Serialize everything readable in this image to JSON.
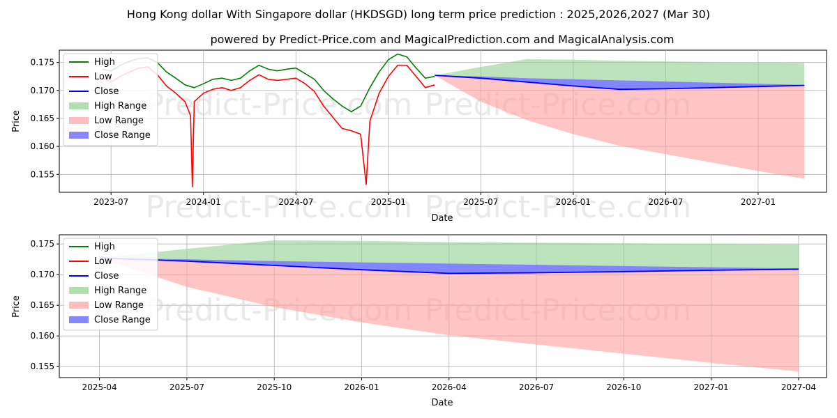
{
  "title": "Hong Kong dollar With Singapore dollar (HKDSGD) long term price prediction : 2025,2026,2027 (Mar 30)",
  "subtitle": "powered by Predict-Price.com and MagicalPrediction.com and MagicalAnalysis.com",
  "watermark": "Predict-Price.com",
  "colors": {
    "high": "#008000",
    "low": "#ff0000",
    "close": "#0000ff",
    "high_range": "#8fd18f",
    "low_range": "#ff9f9f",
    "close_range": "#7f7fff"
  },
  "chart_data": [
    {
      "type": "line",
      "panel": "top",
      "xlabel": "Date",
      "ylabel": "Price",
      "x_range_months": [
        2023.22,
        2027.37
      ],
      "ylim": [
        0.1518,
        0.1772
      ],
      "yticks": [
        0.155,
        0.16,
        0.165,
        0.17,
        0.175
      ],
      "ytick_labels": [
        "0.155",
        "0.160",
        "0.165",
        "0.170",
        "0.175"
      ],
      "xticks": [
        2023.5,
        2024.0,
        2024.5,
        2025.0,
        2025.5,
        2026.0,
        2026.5,
        2027.0
      ],
      "xtick_labels": [
        "2023-07",
        "2024-01",
        "2024-07",
        "2025-01",
        "2025-07",
        "2026-01",
        "2026-07",
        "2027-01"
      ],
      "legend": [
        "High",
        "Low",
        "Close",
        "High Range",
        "Low Range",
        "Close Range"
      ],
      "legend_placement": "top-left",
      "grid": true,
      "series": [
        {
          "name": "High",
          "x": [
            2023.45,
            2023.5,
            2023.55,
            2023.6,
            2023.65,
            2023.7,
            2023.75,
            2023.8,
            2023.85,
            2023.9,
            2023.95,
            2024.0,
            2024.05,
            2024.1,
            2024.15,
            2024.2,
            2024.25,
            2024.3,
            2024.35,
            2024.4,
            2024.45,
            2024.5,
            2024.55,
            2024.6,
            2024.65,
            2024.7,
            2024.75,
            2024.8,
            2024.85,
            2024.9,
            2024.95,
            2025.0,
            2025.05,
            2025.1,
            2025.15,
            2025.2,
            2025.25
          ],
          "values": [
            0.1738,
            0.1735,
            0.1745,
            0.1752,
            0.1757,
            0.1758,
            0.175,
            0.1733,
            0.1722,
            0.171,
            0.1705,
            0.1712,
            0.172,
            0.1722,
            0.1718,
            0.1722,
            0.1735,
            0.1745,
            0.1738,
            0.1735,
            0.1738,
            0.174,
            0.173,
            0.172,
            0.17,
            0.1685,
            0.1672,
            0.1662,
            0.1672,
            0.1705,
            0.1733,
            0.1755,
            0.1765,
            0.176,
            0.174,
            0.1722,
            0.1725
          ]
        },
        {
          "name": "Low",
          "x": [
            2023.45,
            2023.5,
            2023.55,
            2023.6,
            2023.65,
            2023.7,
            2023.75,
            2023.8,
            2023.85,
            2023.9,
            2023.93,
            2023.94,
            2023.95,
            2024.0,
            2024.05,
            2024.1,
            2024.15,
            2024.2,
            2024.25,
            2024.3,
            2024.35,
            2024.4,
            2024.45,
            2024.5,
            2024.55,
            2024.6,
            2024.65,
            2024.7,
            2024.75,
            2024.8,
            2024.85,
            2024.88,
            2024.9,
            2024.95,
            2025.0,
            2025.05,
            2025.1,
            2025.15,
            2025.2,
            2025.25
          ],
          "values": [
            0.1722,
            0.1715,
            0.1725,
            0.1733,
            0.174,
            0.1742,
            0.1728,
            0.1708,
            0.1695,
            0.168,
            0.1655,
            0.1528,
            0.168,
            0.1695,
            0.1702,
            0.1705,
            0.17,
            0.1705,
            0.1718,
            0.1728,
            0.172,
            0.1718,
            0.172,
            0.1722,
            0.1712,
            0.1698,
            0.1672,
            0.1652,
            0.1632,
            0.1628,
            0.1622,
            0.1532,
            0.1645,
            0.1695,
            0.1725,
            0.1745,
            0.1745,
            0.1725,
            0.1705,
            0.171
          ]
        },
        {
          "name": "Close",
          "x": [
            2025.25,
            2025.5,
            2025.75,
            2026.0,
            2026.25,
            2026.5,
            2026.75,
            2027.0,
            2027.25
          ],
          "values": [
            0.1727,
            0.1722,
            0.1715,
            0.1708,
            0.1702,
            0.1703,
            0.1705,
            0.1707,
            0.1709
          ]
        }
      ],
      "ranges": [
        {
          "name": "High Range",
          "x": [
            2025.25,
            2025.5,
            2025.75,
            2026.0,
            2026.25,
            2026.5,
            2026.75,
            2027.0,
            2027.25
          ],
          "upper": [
            0.1727,
            0.1742,
            0.1756,
            0.1755,
            0.1753,
            0.1752,
            0.1751,
            0.175,
            0.1749
          ],
          "lower": [
            0.1727,
            0.1722,
            0.1715,
            0.1708,
            0.1702,
            0.1703,
            0.1705,
            0.1707,
            0.1709
          ]
        },
        {
          "name": "Low Range",
          "x": [
            2025.25,
            2025.5,
            2025.75,
            2026.0,
            2026.25,
            2026.5,
            2026.75,
            2027.0,
            2027.25
          ],
          "upper": [
            0.1727,
            0.1722,
            0.1715,
            0.1708,
            0.1702,
            0.1703,
            0.1705,
            0.1707,
            0.1709
          ],
          "lower": [
            0.1727,
            0.168,
            0.1647,
            0.1622,
            0.1601,
            0.1586,
            0.1571,
            0.1556,
            0.1542
          ]
        },
        {
          "name": "Close Range",
          "x": [
            2025.25,
            2025.5,
            2025.75,
            2026.0,
            2026.25,
            2026.5,
            2026.75,
            2027.0,
            2027.25
          ],
          "upper": [
            0.1727,
            0.1725,
            0.1722,
            0.172,
            0.1718,
            0.1716,
            0.1714,
            0.1712,
            0.171
          ],
          "lower": [
            0.1727,
            0.1722,
            0.1715,
            0.1708,
            0.1702,
            0.1703,
            0.1705,
            0.1707,
            0.1709
          ]
        }
      ]
    },
    {
      "type": "line",
      "panel": "bottom",
      "xlabel": "Date",
      "ylabel": "Price",
      "x_range_months": [
        2025.135,
        2027.33
      ],
      "ylim": [
        0.1532,
        0.1765
      ],
      "yticks": [
        0.155,
        0.16,
        0.165,
        0.17,
        0.175
      ],
      "ytick_labels": [
        "0.155",
        "0.160",
        "0.165",
        "0.170",
        "0.175"
      ],
      "xticks": [
        2025.25,
        2025.5,
        2025.75,
        2026.0,
        2026.25,
        2026.5,
        2026.75,
        2027.0,
        2027.25
      ],
      "xtick_labels": [
        "2025-04",
        "2025-07",
        "2025-10",
        "2026-01",
        "2026-04",
        "2026-07",
        "2026-10",
        "2027-01",
        "2027-04"
      ],
      "legend": [
        "High",
        "Low",
        "Close",
        "High Range",
        "Low Range",
        "Close Range"
      ],
      "legend_placement": "top-left",
      "grid": true,
      "series": [
        {
          "name": "Close",
          "x": [
            2025.25,
            2025.5,
            2025.75,
            2026.0,
            2026.25,
            2026.5,
            2026.75,
            2027.0,
            2027.25
          ],
          "values": [
            0.1727,
            0.1722,
            0.1715,
            0.1708,
            0.1702,
            0.1703,
            0.1705,
            0.1707,
            0.1709
          ]
        }
      ],
      "ranges": [
        {
          "name": "High Range",
          "x": [
            2025.25,
            2025.5,
            2025.75,
            2026.0,
            2026.25,
            2026.5,
            2026.75,
            2027.0,
            2027.25
          ],
          "upper": [
            0.1727,
            0.1742,
            0.1756,
            0.1755,
            0.1753,
            0.1752,
            0.1751,
            0.175,
            0.1749
          ],
          "lower": [
            0.1727,
            0.1722,
            0.1715,
            0.1708,
            0.1702,
            0.1703,
            0.1705,
            0.1707,
            0.1709
          ]
        },
        {
          "name": "Low Range",
          "x": [
            2025.25,
            2025.5,
            2025.75,
            2026.0,
            2026.25,
            2026.5,
            2026.75,
            2027.0,
            2027.25
          ],
          "upper": [
            0.1727,
            0.1722,
            0.1715,
            0.1708,
            0.1702,
            0.1703,
            0.1705,
            0.1707,
            0.1709
          ],
          "lower": [
            0.1727,
            0.168,
            0.1647,
            0.1622,
            0.1601,
            0.1586,
            0.1571,
            0.1556,
            0.1542
          ]
        },
        {
          "name": "Close Range",
          "x": [
            2025.25,
            2025.5,
            2025.75,
            2026.0,
            2026.25,
            2026.5,
            2026.75,
            2027.0,
            2027.25
          ],
          "upper": [
            0.1727,
            0.1725,
            0.1722,
            0.172,
            0.1718,
            0.1716,
            0.1714,
            0.1712,
            0.171
          ],
          "lower": [
            0.1727,
            0.1722,
            0.1715,
            0.1708,
            0.1702,
            0.1703,
            0.1705,
            0.1707,
            0.1709
          ]
        }
      ]
    }
  ]
}
